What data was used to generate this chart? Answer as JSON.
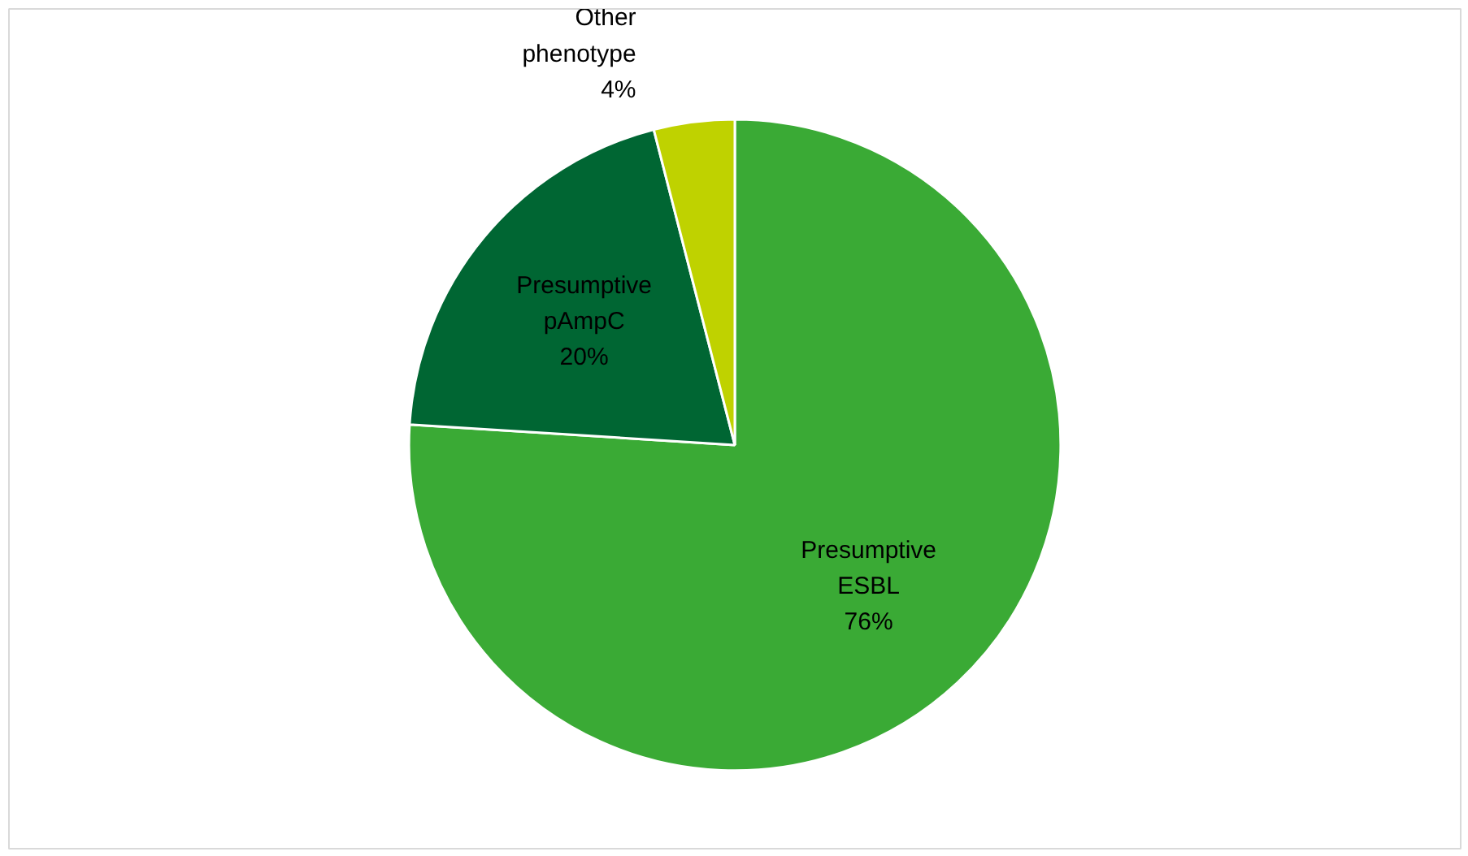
{
  "chart_data": {
    "type": "pie",
    "categories": [
      "Presumptive ESBL",
      "Presumptive pAmpC",
      "Other phenotype"
    ],
    "values": [
      76,
      20,
      4
    ],
    "colors": [
      "#3aaa35",
      "#006633",
      "#bfd200"
    ],
    "value_labels": [
      "76%",
      "20%",
      "4%"
    ]
  }
}
